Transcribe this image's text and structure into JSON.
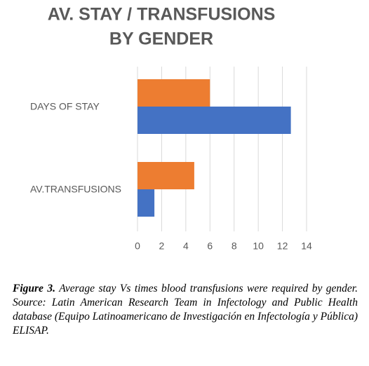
{
  "chart_data": {
    "type": "hbar",
    "title": [
      "AV. STAY  / TRANSFUSIONS",
      "BY GENDER"
    ],
    "categories": [
      "DAYS OF STAY",
      "AV.TRANSFUSIONS"
    ],
    "series": [
      {
        "color": "#ed7d31",
        "values": [
          6,
          4.7
        ]
      },
      {
        "color": "#4472c4",
        "values": [
          12.7,
          1.4
        ]
      }
    ],
    "xlim": [
      0,
      14
    ],
    "xticks": [
      0,
      2,
      4,
      6,
      8,
      10,
      12,
      14
    ],
    "grid": true
  },
  "caption": {
    "label": "Figure 3.",
    "text": "Average stay Vs times blood transfusions were required by gender. Source: Latin American Research Team in Infectology and Public Health database (Equipo Latinoamericano de Investigación en Infectología y Pública) ELISAP."
  }
}
